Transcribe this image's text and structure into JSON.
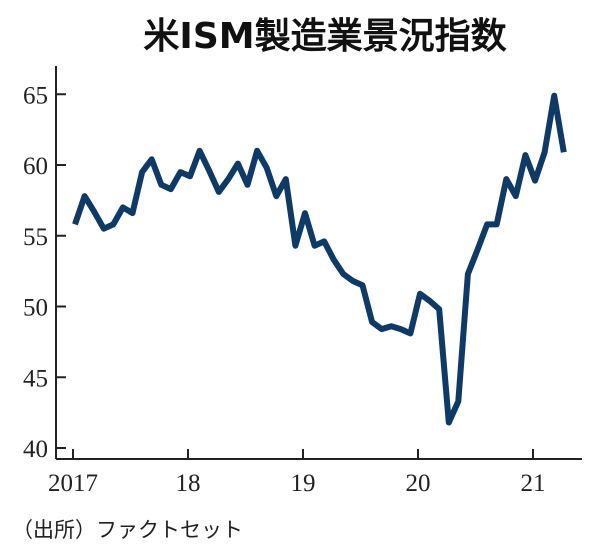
{
  "chart_data": {
    "type": "line",
    "title": "米ISM製造業景況指数",
    "source": "（出所）ファクトセット",
    "xlabel": "",
    "ylabel": "",
    "x_tick_labels": [
      "2017",
      "18",
      "19",
      "20",
      "21"
    ],
    "y_ticks": [
      40,
      45,
      50,
      55,
      60,
      65
    ],
    "ylim": [
      40,
      67
    ],
    "grid": false,
    "line_color": "#0e3a67",
    "series": [
      {
        "x": [
          "2017-01",
          "2017-02",
          "2017-03",
          "2017-04",
          "2017-05",
          "2017-06",
          "2017-07",
          "2017-08",
          "2017-09",
          "2017-10",
          "2017-11",
          "2017-12",
          "2018-01",
          "2018-02",
          "2018-03",
          "2018-04",
          "2018-05",
          "2018-06",
          "2018-07",
          "2018-08",
          "2018-09",
          "2018-10",
          "2018-11",
          "2018-12",
          "2019-01",
          "2019-02",
          "2019-03",
          "2019-04",
          "2019-05",
          "2019-06",
          "2019-07",
          "2019-08",
          "2019-09",
          "2019-10",
          "2019-11",
          "2019-12",
          "2020-01",
          "2020-02",
          "2020-03",
          "2020-04",
          "2020-05",
          "2020-06",
          "2020-07",
          "2020-08",
          "2020-09",
          "2020-10",
          "2020-11",
          "2020-12",
          "2021-01",
          "2021-02",
          "2021-03",
          "2021-04"
        ],
        "values": [
          55.8,
          57.8,
          56.7,
          55.5,
          55.8,
          57.0,
          56.6,
          59.5,
          60.4,
          58.6,
          58.3,
          59.5,
          59.2,
          61.0,
          59.6,
          58.1,
          59.0,
          60.1,
          58.6,
          61.0,
          59.8,
          57.8,
          59.0,
          54.3,
          56.6,
          54.3,
          54.6,
          53.3,
          52.3,
          51.8,
          51.5,
          48.9,
          48.4,
          48.6,
          48.4,
          48.1,
          50.9,
          50.4,
          49.8,
          41.8,
          43.3,
          52.3,
          54.0,
          55.8,
          55.8,
          59.0,
          57.8,
          60.7,
          58.9,
          60.9,
          64.9,
          60.9
        ]
      }
    ]
  }
}
